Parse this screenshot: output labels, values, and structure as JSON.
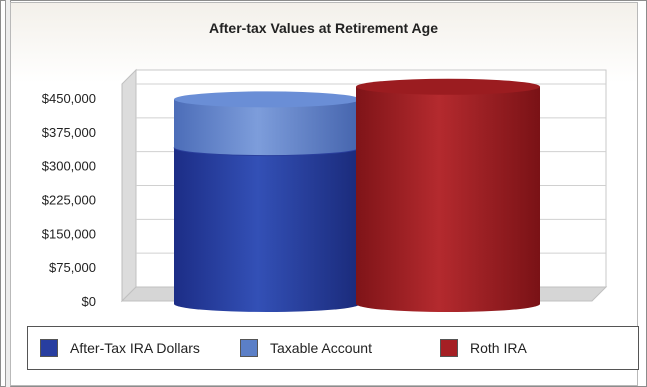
{
  "chart_data": {
    "type": "bar",
    "stacked": true,
    "title": "After-tax Values at Retirement Age",
    "xlabel": "",
    "ylabel": "",
    "ylim": [
      0,
      525000
    ],
    "y_ticks": [
      "$0",
      "$75,000",
      "$150,000",
      "$225,000",
      "$300,000",
      "$375,000",
      "$450,000"
    ],
    "y_tick_values": [
      0,
      75000,
      150000,
      225000,
      300000,
      375000,
      450000
    ],
    "grid": true,
    "legend_position": "bottom",
    "bars": [
      {
        "stack": [
          {
            "series": "After-Tax IRA Dollars",
            "value": 340000,
            "color": "#283ea0"
          },
          {
            "series": "Taxable Account",
            "value": 107000,
            "color": "#5b7fc7"
          }
        ]
      },
      {
        "stack": [
          {
            "series": "Roth IRA",
            "value": 475000,
            "color": "#a51f24"
          }
        ]
      }
    ],
    "series": [
      {
        "name": "After-Tax IRA Dollars",
        "color": "#283ea0"
      },
      {
        "name": "Taxable Account",
        "color": "#5b7fc7"
      },
      {
        "name": "Roth IRA",
        "color": "#a51f24"
      }
    ]
  }
}
